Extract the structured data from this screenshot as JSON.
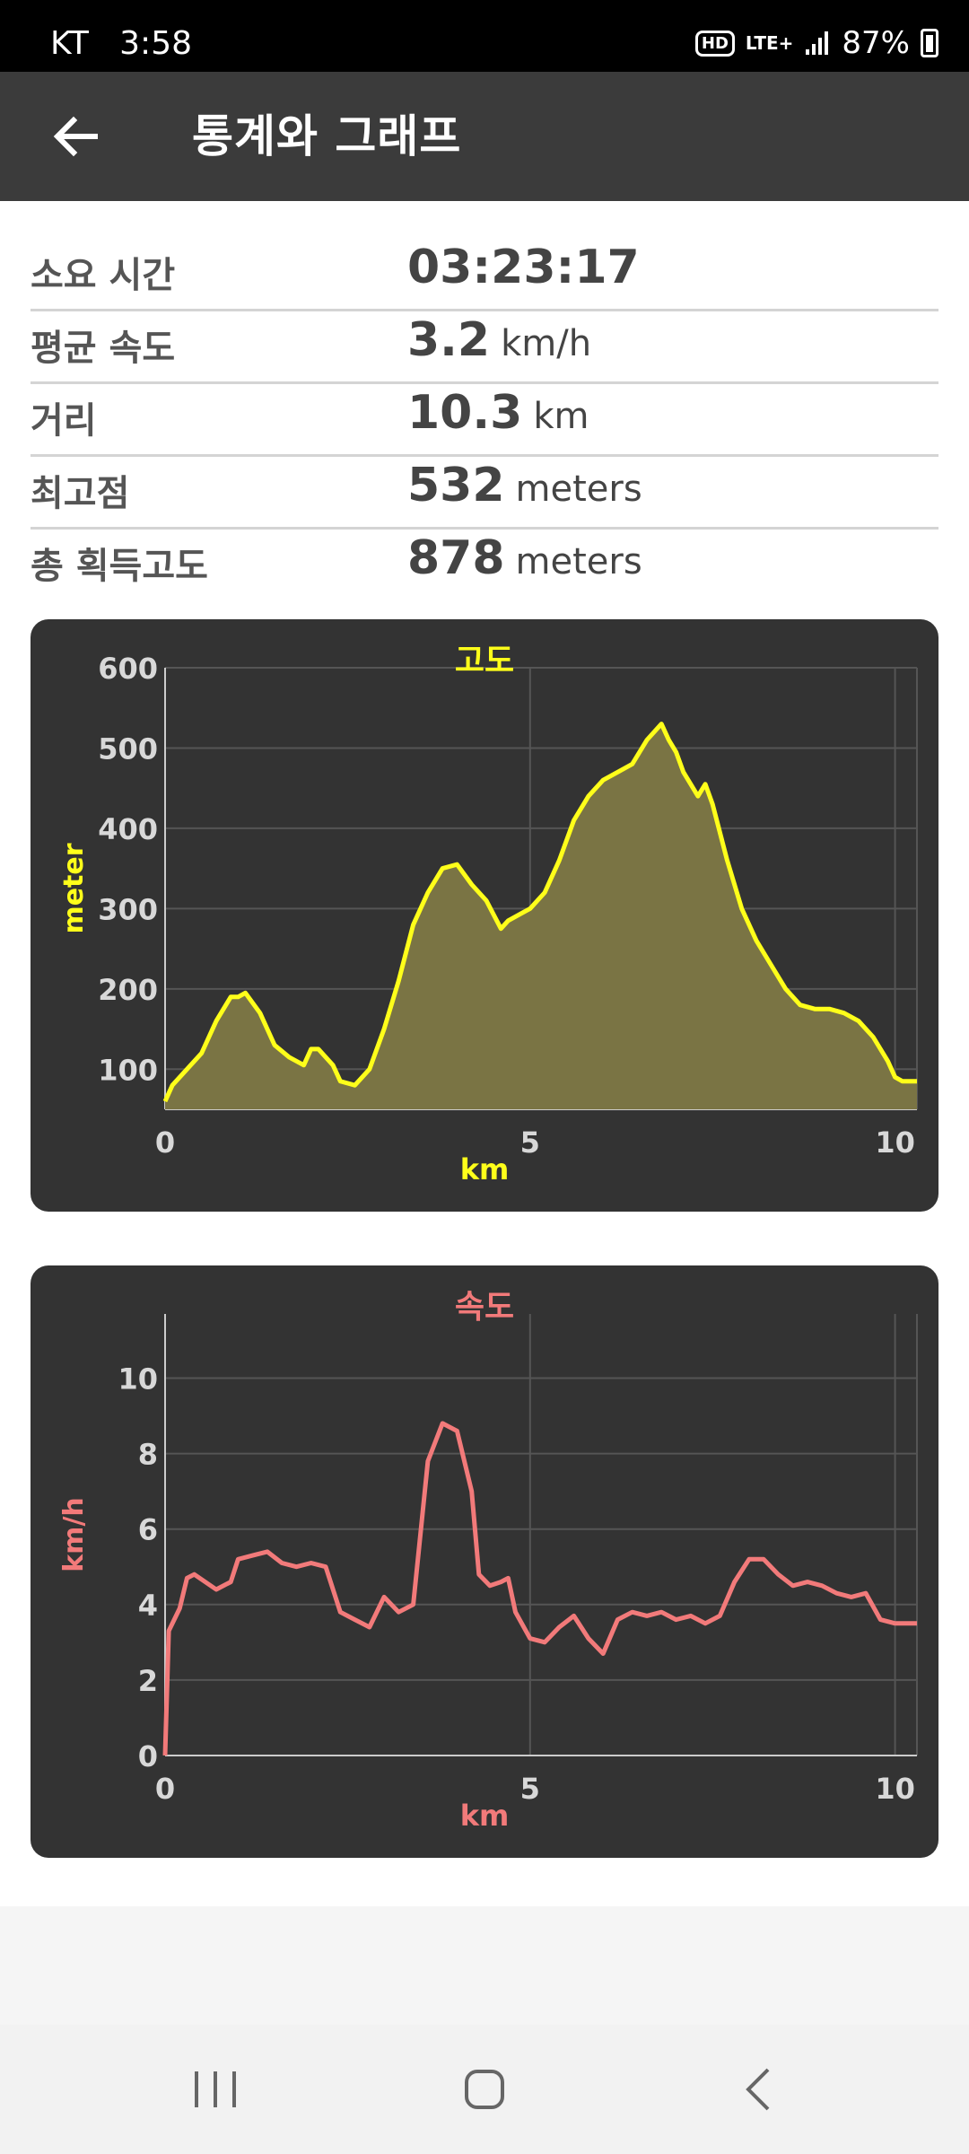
{
  "status_bar": {
    "carrier": "KT",
    "time": "3:58",
    "hd": "HD",
    "network": "LTE+",
    "battery": "87%"
  },
  "app_bar": {
    "title": "통계와 그래프"
  },
  "stats": [
    {
      "label": "소요 시간",
      "value": "03:23:17",
      "unit": ""
    },
    {
      "label": "평균 속도",
      "value": "3.2",
      "unit": "km/h"
    },
    {
      "label": "거리",
      "value": "10.3",
      "unit": "km"
    },
    {
      "label": "최고점",
      "value": "532",
      "unit": "meters"
    },
    {
      "label": "총 획득고도",
      "value": "878",
      "unit": "meters"
    }
  ],
  "colors": {
    "elevation": "#ffff1a",
    "speed": "#f27a7a",
    "chart_bg": "#333333",
    "grid": "#555555",
    "tick": "#d8d8d8"
  },
  "chart_data": [
    {
      "type": "area",
      "title": "고도",
      "xlabel": "km",
      "ylabel": "meter",
      "xlim": [
        0,
        10.3
      ],
      "ylim": [
        50,
        600
      ],
      "xticks": [
        "0",
        "5",
        "10"
      ],
      "yticks": [
        "100",
        "200",
        "300",
        "400",
        "500",
        "600"
      ],
      "x": [
        0,
        0.1,
        0.3,
        0.5,
        0.7,
        0.9,
        1.0,
        1.1,
        1.3,
        1.5,
        1.7,
        1.9,
        2.0,
        2.1,
        2.3,
        2.4,
        2.6,
        2.8,
        3.0,
        3.2,
        3.4,
        3.6,
        3.8,
        4.0,
        4.2,
        4.4,
        4.6,
        4.7,
        4.9,
        5.0,
        5.2,
        5.4,
        5.6,
        5.8,
        6.0,
        6.2,
        6.4,
        6.6,
        6.8,
        6.9,
        7.0,
        7.1,
        7.3,
        7.4,
        7.5,
        7.7,
        7.9,
        8.1,
        8.3,
        8.5,
        8.7,
        8.9,
        9.1,
        9.3,
        9.5,
        9.7,
        9.9,
        10.0,
        10.1,
        10.3
      ],
      "y": [
        60,
        80,
        100,
        120,
        160,
        190,
        190,
        195,
        170,
        130,
        115,
        105,
        125,
        125,
        105,
        85,
        80,
        100,
        150,
        210,
        280,
        320,
        350,
        355,
        330,
        310,
        275,
        285,
        295,
        300,
        320,
        360,
        410,
        440,
        460,
        470,
        480,
        510,
        530,
        510,
        495,
        470,
        440,
        455,
        430,
        360,
        300,
        260,
        230,
        200,
        180,
        175,
        175,
        170,
        160,
        140,
        110,
        90,
        85,
        85
      ]
    },
    {
      "type": "line",
      "title": "속도",
      "xlabel": "km",
      "ylabel": "km/h",
      "xlim": [
        0,
        10.3
      ],
      "ylim": [
        0,
        11.7
      ],
      "xticks": [
        "0",
        "5",
        "10"
      ],
      "yticks": [
        "0",
        "2",
        "4",
        "6",
        "8",
        "10"
      ],
      "x": [
        0,
        0.05,
        0.2,
        0.3,
        0.4,
        0.7,
        0.9,
        1.0,
        1.2,
        1.4,
        1.6,
        1.8,
        2.0,
        2.2,
        2.4,
        2.6,
        2.8,
        3.0,
        3.2,
        3.4,
        3.6,
        3.8,
        4.0,
        4.2,
        4.3,
        4.45,
        4.6,
        4.7,
        4.8,
        5.0,
        5.2,
        5.4,
        5.6,
        5.8,
        6.0,
        6.2,
        6.4,
        6.6,
        6.8,
        7.0,
        7.2,
        7.4,
        7.6,
        7.8,
        8.0,
        8.2,
        8.4,
        8.6,
        8.8,
        9.0,
        9.2,
        9.4,
        9.6,
        9.8,
        10.0,
        10.2,
        10.3
      ],
      "y": [
        0,
        3.3,
        3.9,
        4.7,
        4.8,
        4.4,
        4.6,
        5.2,
        5.3,
        5.4,
        5.1,
        5.0,
        5.1,
        5.0,
        3.8,
        3.6,
        3.4,
        4.2,
        3.8,
        4.0,
        7.8,
        8.8,
        8.6,
        7.0,
        4.8,
        4.5,
        4.6,
        4.7,
        3.8,
        3.1,
        3.0,
        3.4,
        3.7,
        3.1,
        2.7,
        3.6,
        3.8,
        3.7,
        3.8,
        3.6,
        3.7,
        3.5,
        3.7,
        4.6,
        5.2,
        5.2,
        4.8,
        4.5,
        4.6,
        4.5,
        4.3,
        4.2,
        4.3,
        3.6,
        3.5,
        3.5,
        3.5
      ]
    }
  ]
}
